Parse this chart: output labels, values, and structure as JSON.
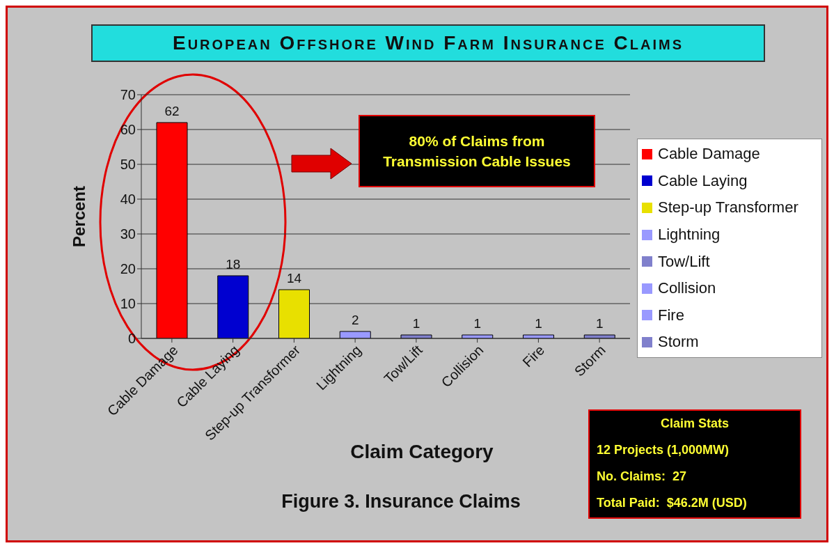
{
  "chart_data": {
    "type": "bar",
    "title": "European Offshore Wind Farm Insurance Claims",
    "xlabel": "Claim Category",
    "ylabel": "Percent",
    "categories": [
      "Cable Damage",
      "Cable Laying",
      "Step-up Transformer",
      "Lightning",
      "Tow/Lift",
      "Collision",
      "Fire",
      "Storm"
    ],
    "stacked": true,
    "series": [
      {
        "name": "Cable Damage",
        "color": "#ff0000",
        "values": [
          62,
          null,
          null,
          null,
          null,
          null,
          null,
          null
        ]
      },
      {
        "name": "Cable Laying",
        "color": "#0000d0",
        "values": [
          null,
          18,
          null,
          null,
          null,
          null,
          null,
          null
        ]
      },
      {
        "name": "Step-up Transformer",
        "color": "#e8e000",
        "values": [
          null,
          null,
          14,
          null,
          null,
          null,
          null,
          null
        ]
      },
      {
        "name": "Lightning",
        "color": "#9999ff",
        "values": [
          null,
          null,
          null,
          2,
          null,
          null,
          null,
          null
        ]
      },
      {
        "name": "Tow/Lift",
        "color": "#8080cc",
        "values": [
          null,
          null,
          null,
          null,
          1,
          null,
          null,
          null
        ]
      },
      {
        "name": "Collision",
        "color": "#9999ff",
        "values": [
          null,
          null,
          null,
          null,
          null,
          1,
          null,
          null
        ]
      },
      {
        "name": "Fire",
        "color": "#9999ff",
        "values": [
          null,
          null,
          null,
          null,
          null,
          null,
          1,
          null
        ]
      },
      {
        "name": "Storm",
        "color": "#8080cc",
        "values": [
          null,
          null,
          null,
          null,
          null,
          null,
          null,
          1
        ]
      }
    ],
    "ylim": [
      0,
      70
    ],
    "yticks": [
      0,
      10,
      20,
      30,
      40,
      50,
      60,
      70
    ],
    "grid": "y",
    "legend": "right",
    "data_labels": true,
    "annotations": [
      "80% of Claims from Transmission Cable Issues",
      "Claim Stats",
      "12 Projects (1,000MW)",
      "No. Claims:  27",
      "Total Paid:  $46.2M (USD)",
      "Figure 3. Insurance Claims"
    ]
  }
}
